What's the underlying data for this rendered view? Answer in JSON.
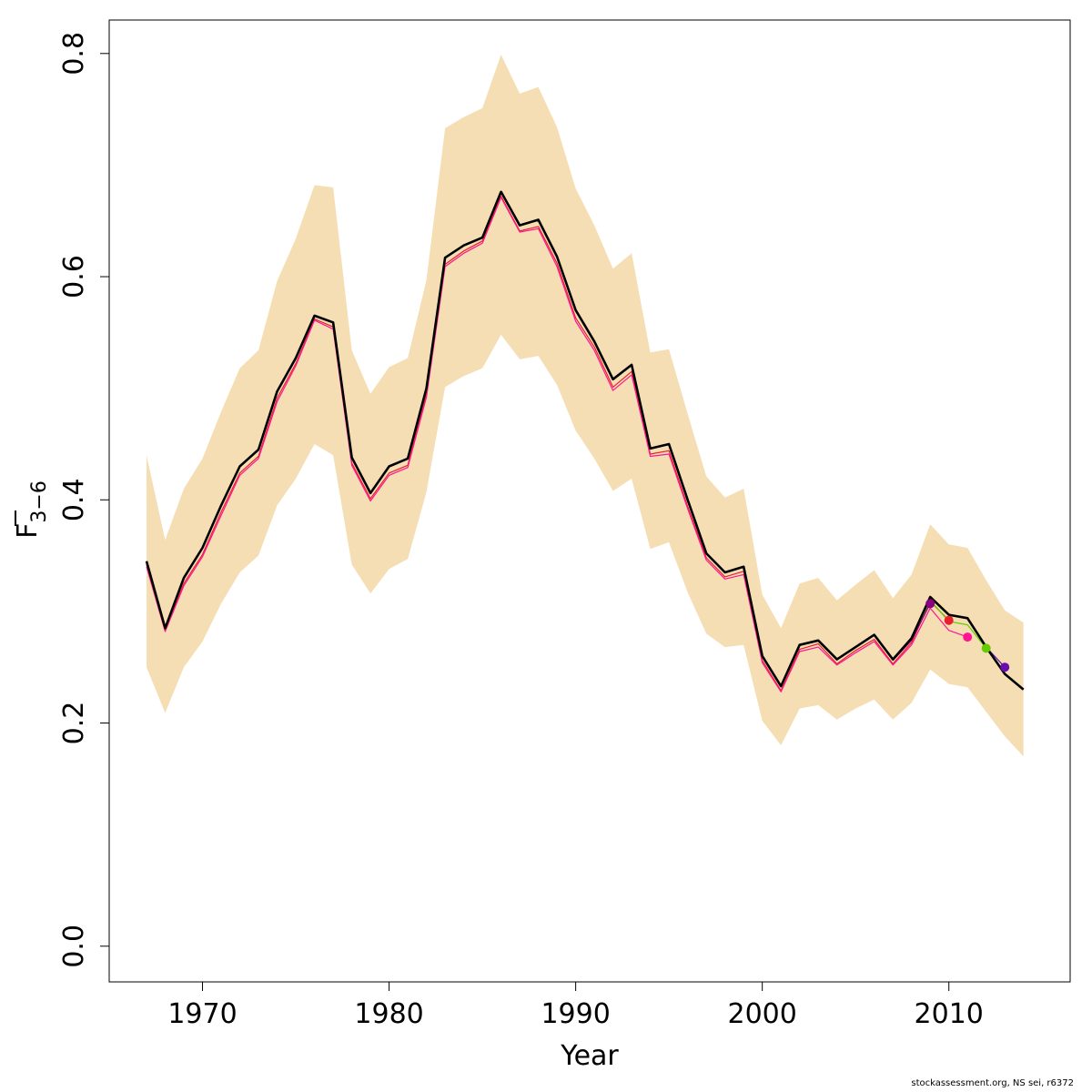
{
  "chart_data": {
    "type": "line",
    "xlabel": "Year",
    "ylabel": "F",
    "ylabel_sub": "3−6",
    "xlim": [
      1965,
      2016.5
    ],
    "ylim": [
      -0.032,
      0.83
    ],
    "xticks": [
      1970,
      1980,
      1990,
      2000,
      2010
    ],
    "yticks": [
      0.0,
      0.2,
      0.4,
      0.6,
      0.8
    ],
    "ytick_labels": [
      "0.0",
      "0.2",
      "0.4",
      "0.6",
      "0.8"
    ],
    "grid": false,
    "band_color": "#F5DEB3",
    "x": [
      1967,
      1968,
      1969,
      1970,
      1971,
      1972,
      1973,
      1974,
      1975,
      1976,
      1977,
      1978,
      1979,
      1980,
      1981,
      1982,
      1983,
      1984,
      1985,
      1986,
      1987,
      1988,
      1989,
      1990,
      1991,
      1992,
      1993,
      1994,
      1995,
      1996,
      1997,
      1998,
      1999,
      2000,
      2001,
      2002,
      2003,
      2004,
      2005,
      2006,
      2007,
      2008,
      2009,
      2010,
      2011,
      2012,
      2013,
      2014
    ],
    "confidence_band": {
      "upper": [
        0.44,
        0.364,
        0.41,
        0.437,
        0.479,
        0.518,
        0.534,
        0.596,
        0.634,
        0.682,
        0.68,
        0.534,
        0.495,
        0.519,
        0.527,
        0.597,
        0.733,
        0.743,
        0.751,
        0.799,
        0.764,
        0.77,
        0.734,
        0.679,
        0.646,
        0.607,
        0.621,
        0.532,
        0.535,
        0.477,
        0.421,
        0.402,
        0.41,
        0.315,
        0.285,
        0.325,
        0.33,
        0.31,
        0.324,
        0.337,
        0.312,
        0.333,
        0.378,
        0.36,
        0.357,
        0.328,
        0.301,
        0.29
      ],
      "lower": [
        0.25,
        0.209,
        0.25,
        0.273,
        0.307,
        0.335,
        0.35,
        0.395,
        0.419,
        0.45,
        0.44,
        0.342,
        0.316,
        0.338,
        0.347,
        0.407,
        0.501,
        0.511,
        0.518,
        0.548,
        0.526,
        0.529,
        0.503,
        0.462,
        0.437,
        0.408,
        0.419,
        0.356,
        0.362,
        0.317,
        0.28,
        0.268,
        0.27,
        0.202,
        0.18,
        0.213,
        0.216,
        0.203,
        0.213,
        0.221,
        0.203,
        0.218,
        0.248,
        0.235,
        0.232,
        0.21,
        0.188,
        0.17
      ]
    },
    "series": [
      {
        "color": "#000000",
        "width": 2.6,
        "x": [
          1967,
          1968,
          1969,
          1970,
          1971,
          1972,
          1973,
          1974,
          1975,
          1976,
          1977,
          1978,
          1979,
          1980,
          1981,
          1982,
          1983,
          1984,
          1985,
          1986,
          1987,
          1988,
          1989,
          1990,
          1991,
          1992,
          1993,
          1994,
          1995,
          1996,
          1997,
          1998,
          1999,
          2000,
          2001,
          2002,
          2003,
          2004,
          2005,
          2006,
          2007,
          2008,
          2009,
          2010,
          2011,
          2012,
          2013,
          2014
        ],
        "values": [
          0.345,
          0.285,
          0.33,
          0.357,
          0.395,
          0.43,
          0.445,
          0.497,
          0.527,
          0.565,
          0.559,
          0.438,
          0.406,
          0.43,
          0.437,
          0.5,
          0.617,
          0.628,
          0.635,
          0.676,
          0.646,
          0.651,
          0.618,
          0.57,
          0.542,
          0.508,
          0.521,
          0.446,
          0.45,
          0.4,
          0.352,
          0.335,
          0.34,
          0.26,
          0.233,
          0.27,
          0.274,
          0.257,
          0.268,
          0.279,
          0.257,
          0.276,
          0.313,
          0.297,
          0.294,
          0.268,
          0.244,
          0.23
        ]
      },
      {
        "color": "#E8202E",
        "width": 1.2,
        "x": [
          1967,
          1968,
          1969,
          1970,
          1971,
          1972,
          1973,
          1974,
          1975,
          1976,
          1977,
          1978,
          1979,
          1980,
          1981,
          1982,
          1983,
          1984,
          1985,
          1986,
          1987,
          1988,
          1989,
          1990,
          1991,
          1992,
          1993,
          1994,
          1995,
          1996,
          1997,
          1998,
          1999,
          2000,
          2001,
          2002,
          2003,
          2004,
          2005,
          2006,
          2007,
          2008,
          2009,
          2010
        ],
        "values": [
          0.342,
          0.283,
          0.325,
          0.351,
          0.389,
          0.424,
          0.439,
          0.491,
          0.522,
          0.562,
          0.555,
          0.433,
          0.401,
          0.424,
          0.431,
          0.495,
          0.611,
          0.623,
          0.632,
          0.672,
          0.641,
          0.645,
          0.612,
          0.563,
          0.537,
          0.501,
          0.515,
          0.441,
          0.444,
          0.394,
          0.348,
          0.331,
          0.336,
          0.256,
          0.229,
          0.266,
          0.271,
          0.253,
          0.265,
          0.275,
          0.253,
          0.272,
          0.309,
          0.292
        ],
        "end_dot": {
          "x": 2010,
          "y": 0.292
        }
      },
      {
        "color": "#FF1493",
        "width": 1.2,
        "x": [
          1967,
          1968,
          1969,
          1970,
          1971,
          1972,
          1973,
          1974,
          1975,
          1976,
          1977,
          1978,
          1979,
          1980,
          1981,
          1982,
          1983,
          1984,
          1985,
          1986,
          1987,
          1988,
          1989,
          1990,
          1991,
          1992,
          1993,
          1994,
          1995,
          1996,
          1997,
          1998,
          1999,
          2000,
          2001,
          2002,
          2003,
          2004,
          2005,
          2006,
          2007,
          2008,
          2009,
          2010,
          2011
        ],
        "values": [
          0.34,
          0.282,
          0.323,
          0.349,
          0.386,
          0.422,
          0.437,
          0.488,
          0.52,
          0.561,
          0.553,
          0.431,
          0.399,
          0.422,
          0.429,
          0.492,
          0.609,
          0.621,
          0.63,
          0.671,
          0.64,
          0.643,
          0.609,
          0.56,
          0.534,
          0.498,
          0.512,
          0.439,
          0.441,
          0.392,
          0.346,
          0.329,
          0.333,
          0.254,
          0.228,
          0.264,
          0.268,
          0.252,
          0.263,
          0.273,
          0.252,
          0.27,
          0.303,
          0.283,
          0.277
        ],
        "end_dot": {
          "x": 2011,
          "y": 0.277
        }
      },
      {
        "color": "#66CC00",
        "width": 1.2,
        "x": [
          2008,
          2009,
          2010,
          2011,
          2012
        ],
        "values": [
          0.275,
          0.31,
          0.291,
          0.288,
          0.267
        ],
        "end_dot": {
          "x": 2012,
          "y": 0.267
        }
      },
      {
        "color": "#8B0080",
        "width": 1.2,
        "x": [
          2007,
          2008,
          2009
        ],
        "values": [
          0.256,
          0.274,
          0.307
        ],
        "end_dot": {
          "x": 2009,
          "y": 0.307
        }
      },
      {
        "color": "#6A0DAD",
        "width": 1.2,
        "x": [
          2011,
          2012,
          2013
        ],
        "values": [
          0.293,
          0.268,
          0.25
        ],
        "end_dot": {
          "x": 2013,
          "y": 0.25
        }
      }
    ]
  },
  "footer": {
    "credit": "stockassessment.org, NS sei, r6372"
  }
}
